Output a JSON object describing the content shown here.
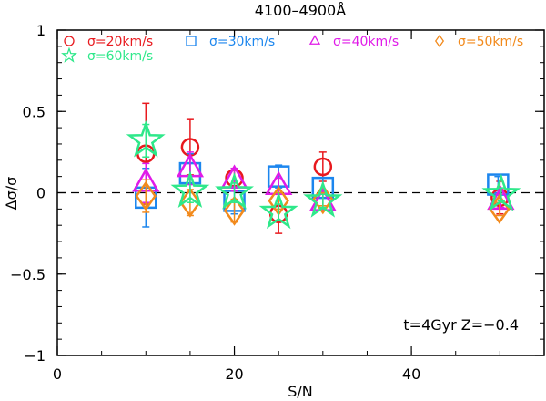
{
  "chart_data": {
    "type": "scatter",
    "title": "4100–4900Å",
    "xlabel": "S/N",
    "ylabel": "Δσ/σ",
    "xlim": [
      0,
      55
    ],
    "ylim": [
      -1,
      1
    ],
    "x_ticks": [
      0,
      20,
      40
    ],
    "y_ticks": [
      -1,
      -0.5,
      0,
      0.5,
      1
    ],
    "x_tick_labels": [
      "0",
      "20",
      "40"
    ],
    "y_tick_labels": [
      "−1",
      "−0.5",
      "0",
      "0.5",
      "1"
    ],
    "grid": false,
    "reference_line": {
      "y": 0,
      "style": "dashed"
    },
    "annotation": "t=4Gyr  Z=−0.4",
    "legend_placement": "top",
    "series": [
      {
        "name": "σ=20km/s",
        "marker": "circle",
        "color": "#e8191e",
        "points": [
          {
            "x": 10,
            "y": 0.24,
            "err": 0.31
          },
          {
            "x": 15,
            "y": 0.28,
            "err": 0.17
          },
          {
            "x": 20,
            "y": 0.09,
            "err": 0.06
          },
          {
            "x": 25,
            "y": -0.13,
            "err": 0.12
          },
          {
            "x": 30,
            "y": 0.16,
            "err": 0.09
          },
          {
            "x": 50,
            "y": -0.03,
            "err": 0.1
          }
        ]
      },
      {
        "name": "σ=30km/s",
        "marker": "square",
        "color": "#1c86ee",
        "points": [
          {
            "x": 10,
            "y": -0.03,
            "err": 0.18
          },
          {
            "x": 15,
            "y": 0.12,
            "err": 0.12
          },
          {
            "x": 20,
            "y": -0.05,
            "err": 0.08
          },
          {
            "x": 25,
            "y": 0.1,
            "err": 0.07
          },
          {
            "x": 30,
            "y": 0.03,
            "err": 0.06
          },
          {
            "x": 50,
            "y": 0.05,
            "err": 0.05
          }
        ]
      },
      {
        "name": "σ=40km/s",
        "marker": "triangle",
        "color": "#e01be8",
        "points": [
          {
            "x": 10,
            "y": 0.06,
            "err": 0.12
          },
          {
            "x": 15,
            "y": 0.15,
            "err": 0.1
          },
          {
            "x": 20,
            "y": 0.08,
            "err": 0.07
          },
          {
            "x": 25,
            "y": 0.04,
            "err": 0.05
          },
          {
            "x": 30,
            "y": -0.06,
            "err": 0.05
          },
          {
            "x": 50,
            "y": -0.05,
            "err": 0.04
          }
        ]
      },
      {
        "name": "σ=50km/s",
        "marker": "diamond",
        "color": "#f28a1c",
        "points": [
          {
            "x": 10,
            "y": -0.02,
            "err": 0.1
          },
          {
            "x": 15,
            "y": -0.06,
            "err": 0.08
          },
          {
            "x": 20,
            "y": -0.11,
            "err": 0.07
          },
          {
            "x": 25,
            "y": -0.05,
            "err": 0.05
          },
          {
            "x": 30,
            "y": -0.04,
            "err": 0.04
          },
          {
            "x": 50,
            "y": -0.1,
            "err": 0.04
          }
        ]
      },
      {
        "name": "σ=60km/s",
        "marker": "star",
        "color": "#2ee88a",
        "points": [
          {
            "x": 10,
            "y": 0.32,
            "err": 0.1
          },
          {
            "x": 15,
            "y": 0.01,
            "err": 0.07
          },
          {
            "x": 20,
            "y": 0.0,
            "err": 0.06
          },
          {
            "x": 25,
            "y": -0.12,
            "err": 0.05
          },
          {
            "x": 30,
            "y": -0.05,
            "err": 0.04
          },
          {
            "x": 50,
            "y": -0.01,
            "err": 0.04
          }
        ]
      }
    ]
  }
}
